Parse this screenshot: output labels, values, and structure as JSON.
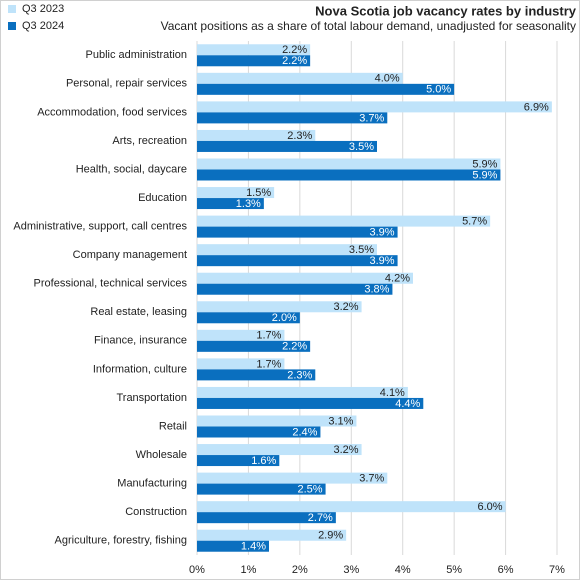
{
  "chart_data": {
    "type": "hbar",
    "title": "Nova Scotia job vacancy rates by industry",
    "subtitle": "Vacant positions as a share of total labour demand, unadjusted for seasonality",
    "categories": [
      "Public administration",
      "Personal, repair services",
      "Accommodation, food services",
      "Arts, recreation",
      "Health, social, daycare",
      "Education",
      "Administrative, support, call centres",
      "Company management",
      "Professional, technical services",
      "Real estate, leasing",
      "Finance, insurance",
      "Information, culture",
      "Transportation",
      "Retail",
      "Wholesale",
      "Manufacturing",
      "Construction",
      "Agriculture, forestry, fishing"
    ],
    "series": [
      {
        "name": "Q3 2023",
        "color": "#bfe3fa",
        "values": [
          2.2,
          4.0,
          6.9,
          2.3,
          5.9,
          1.5,
          5.7,
          3.5,
          4.2,
          3.2,
          1.7,
          1.7,
          4.1,
          3.1,
          3.2,
          3.7,
          6.0,
          2.9
        ],
        "value_labels": [
          "2.2%",
          "4.0%",
          "6.9%",
          "2.3%",
          "5.9%",
          "1.5%",
          "5.7%",
          "3.5%",
          "4.2%",
          "3.2%",
          "1.7%",
          "1.7%",
          "4.1%",
          "3.1%",
          "3.2%",
          "3.7%",
          "6.0%",
          "2.9%"
        ]
      },
      {
        "name": "Q3 2024",
        "color": "#0a6fbf",
        "values": [
          2.2,
          5.0,
          3.7,
          3.5,
          5.9,
          1.3,
          3.9,
          3.9,
          3.8,
          2.0,
          2.2,
          2.3,
          4.4,
          2.4,
          1.6,
          2.5,
          2.7,
          1.4
        ],
        "value_labels": [
          "2.2%",
          "5.0%",
          "3.7%",
          "3.5%",
          "5.9%",
          "1.3%",
          "3.9%",
          "3.9%",
          "3.8%",
          "2.0%",
          "2.2%",
          "2.3%",
          "4.4%",
          "2.4%",
          "1.6%",
          "2.5%",
          "2.7%",
          "1.4%"
        ]
      }
    ],
    "xlim": [
      0,
      7
    ],
    "xticks": [
      {
        "value": 0,
        "label": "0%"
      },
      {
        "value": 1,
        "label": "1%"
      },
      {
        "value": 2,
        "label": "2%"
      },
      {
        "value": 3,
        "label": "3%"
      },
      {
        "value": 4,
        "label": "4%"
      },
      {
        "value": 5,
        "label": "5%"
      },
      {
        "value": 6,
        "label": "6%"
      },
      {
        "value": 7,
        "label": "7%"
      }
    ],
    "grid": true
  }
}
